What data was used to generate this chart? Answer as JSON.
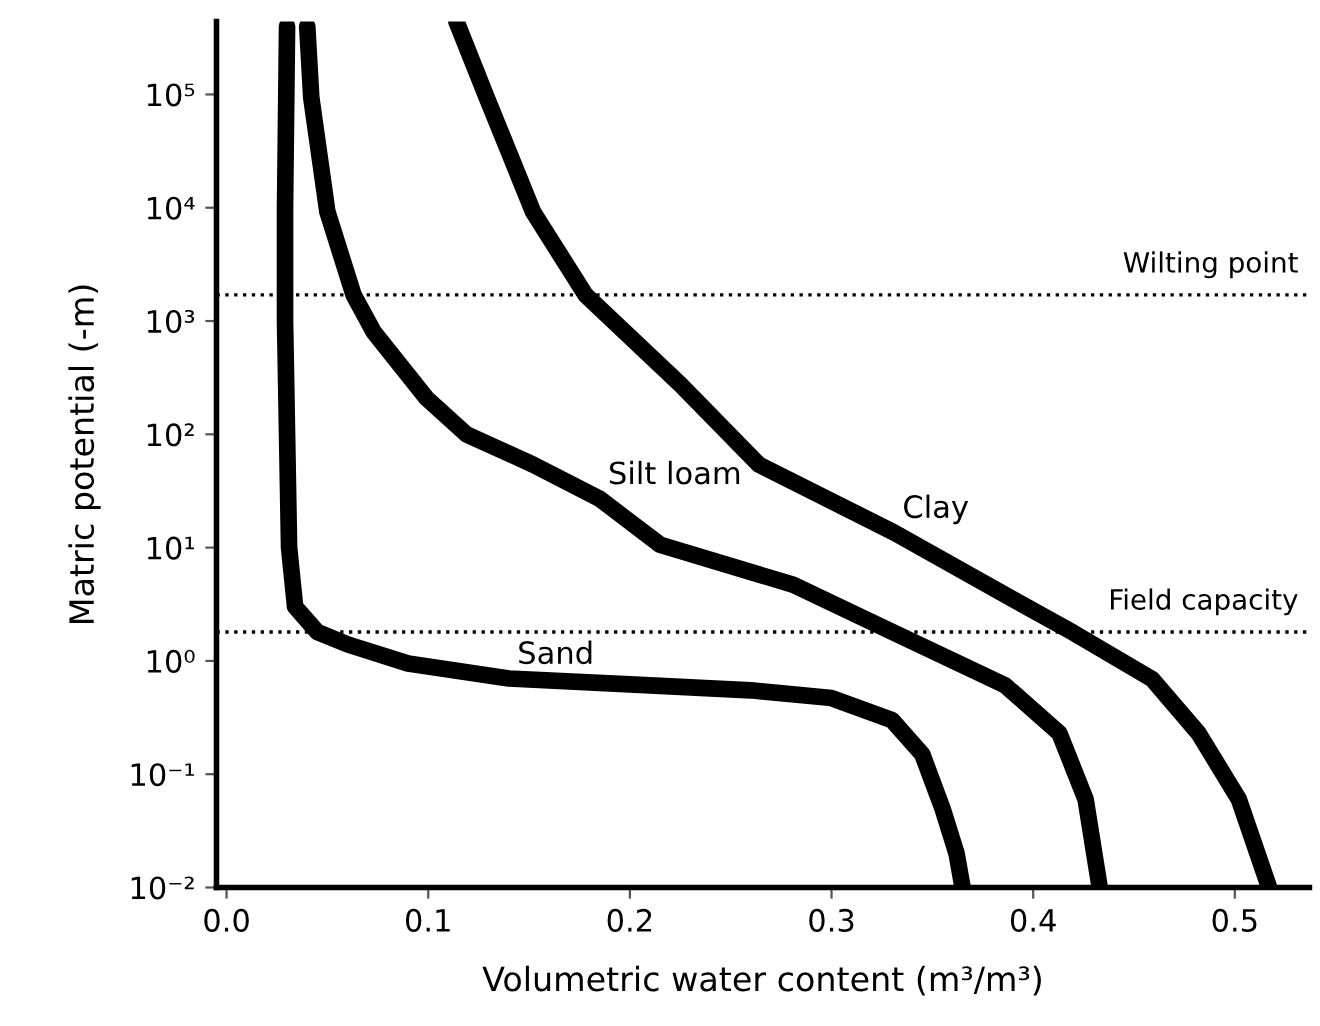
{
  "chart_data": {
    "type": "line",
    "xlabel": "Volumetric water content (m³/m³)",
    "ylabel": "Matric potential (-m)",
    "log": "y",
    "xlim": [
      -0.005,
      0.537
    ],
    "xticks": [
      {
        "value": 0,
        "label": "0.0"
      },
      0.1,
      0.2,
      0.3,
      0.4,
      0.5
    ],
    "ylim": [
      0.01,
      440000
    ],
    "yticks": [
      {
        "value": 0.01,
        "label": "10⁻²"
      },
      {
        "value": 0.1,
        "label": "10⁻¹"
      },
      {
        "value": 1,
        "label": "10⁰"
      },
      {
        "value": 10,
        "label": "10¹"
      },
      {
        "value": 100,
        "label": "10²"
      },
      {
        "value": 1000,
        "label": "10³"
      },
      {
        "value": 10000,
        "label": "10⁴"
      },
      {
        "value": 100000,
        "label": "10⁵"
      }
    ],
    "grid": false,
    "marker": "none",
    "line_style": "solid",
    "series": [
      {
        "name": "Sand",
        "color": "#000000",
        "x": [
          0.03,
          0.029,
          0.029,
          0.03,
          0.031,
          0.034,
          0.045,
          0.06,
          0.09,
          0.14,
          0.2,
          0.26,
          0.3,
          0.33,
          0.345,
          0.355,
          0.362,
          0.365
        ],
        "values": [
          400000,
          10000,
          1000,
          100,
          10,
          3,
          1.8,
          1.4,
          0.95,
          0.7,
          0.62,
          0.55,
          0.47,
          0.3,
          0.15,
          0.05,
          0.02,
          0.01
        ]
      },
      {
        "name": "Silt loam",
        "color": "#000000",
        "x": [
          0.04,
          0.042,
          0.05,
          0.063,
          0.073,
          0.099,
          0.119,
          0.152,
          0.185,
          0.215,
          0.281,
          0.331,
          0.386,
          0.413,
          0.426,
          0.433
        ],
        "values": [
          400000,
          94000,
          9200,
          1700,
          800,
          210,
          100,
          54,
          27,
          10.6,
          4.7,
          1.77,
          0.61,
          0.23,
          0.06,
          0.01
        ]
      },
      {
        "name": "Clay",
        "color": "#000000",
        "x": [
          0.114,
          0.129,
          0.152,
          0.178,
          0.225,
          0.264,
          0.331,
          0.39,
          0.42,
          0.459,
          0.482,
          0.502,
          0.517
        ],
        "values": [
          440000,
          94000,
          9200,
          1700,
          276,
          54,
          13.6,
          3.5,
          1.77,
          0.69,
          0.23,
          0.06,
          0.01
        ]
      }
    ],
    "ref_lines": [
      {
        "axis": "y",
        "value": 1700,
        "label": "Wilting point",
        "color": "#000000",
        "line_style": "dotted"
      },
      {
        "axis": "y",
        "value": 1.8,
        "label": "Field capacity",
        "color": "#000000",
        "line_style": "dotted"
      }
    ]
  }
}
